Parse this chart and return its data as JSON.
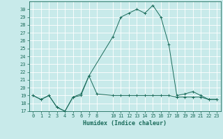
{
  "xlabel": "Humidex (Indice chaleur)",
  "background_color": "#c8eaea",
  "line_color": "#1a6b5a",
  "grid_color": "#ffffff",
  "x_ticks": [
    0,
    1,
    2,
    3,
    4,
    5,
    6,
    7,
    8,
    10,
    11,
    12,
    13,
    14,
    15,
    16,
    17,
    18,
    19,
    20,
    21,
    22,
    23
  ],
  "xlim": [
    -0.5,
    23.5
  ],
  "ylim": [
    17,
    31
  ],
  "y_ticks": [
    17,
    18,
    19,
    20,
    21,
    22,
    23,
    24,
    25,
    26,
    27,
    28,
    29,
    30
  ],
  "series1_x": [
    0,
    1,
    2,
    3,
    4,
    5,
    6,
    7,
    8,
    10,
    11,
    12,
    13,
    14,
    15,
    16,
    17,
    18,
    19,
    20,
    21,
    22,
    23
  ],
  "series1_y": [
    19.0,
    18.5,
    19.0,
    17.5,
    17.0,
    18.8,
    19.2,
    21.5,
    19.2,
    19.0,
    19.0,
    19.0,
    19.0,
    19.0,
    19.0,
    19.0,
    19.0,
    18.8,
    18.8,
    18.8,
    18.8,
    18.5,
    18.5
  ],
  "series2_x": [
    0,
    1,
    2,
    3,
    4,
    5,
    6,
    7,
    10,
    11,
    12,
    13,
    14,
    15,
    16,
    17,
    18,
    19,
    20,
    21,
    22,
    23
  ],
  "series2_y": [
    19.0,
    18.5,
    19.0,
    17.5,
    17.0,
    18.8,
    19.0,
    21.5,
    26.5,
    29.0,
    29.5,
    30.0,
    29.5,
    30.5,
    29.0,
    25.5,
    19.0,
    19.2,
    19.5,
    19.0,
    18.5,
    18.5
  ],
  "tick_fontsize": 5.0,
  "xlabel_fontsize": 6.0
}
